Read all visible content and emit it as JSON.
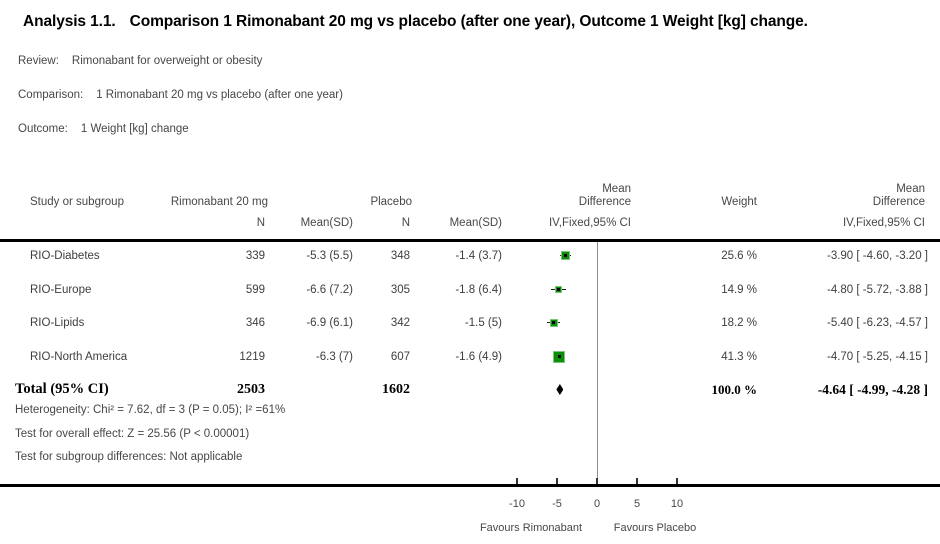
{
  "title": {
    "prefix": "Analysis 1.1.",
    "rest": "Comparison 1 Rimonabant 20 mg vs placebo (after one year), Outcome 1 Weight [kg] change."
  },
  "meta": {
    "review_label": "Review:",
    "review": "Rimonabant for overweight or obesity",
    "comparison_label": "Comparison:",
    "comparison": "1 Rimonabant 20 mg vs placebo (after one year)",
    "outcome_label": "Outcome:",
    "outcome": "1 Weight [kg] change"
  },
  "table": {
    "headers": {
      "study": "Study or subgroup",
      "group1": "Rimonabant 20 mg",
      "group2": "Placebo",
      "n": "N",
      "mean_sd": "Mean(SD)",
      "md_line1": "Mean",
      "md_line2": "Difference",
      "ci_method": "IV,Fixed,95% CI",
      "weight": "Weight"
    },
    "rows": [
      {
        "study": "RIO-Diabetes",
        "n1": "339",
        "mean_sd1": "-5.3 (5.5)",
        "n2": "348",
        "mean_sd2": "-1.4 (3.7)",
        "weight": "25.6 %",
        "md_ci": "-3.90 [ -4.60, -3.20 ]"
      },
      {
        "study": "RIO-Europe",
        "n1": "599",
        "mean_sd1": "-6.6 (7.2)",
        "n2": "305",
        "mean_sd2": "-1.8 (6.4)",
        "weight": "14.9 %",
        "md_ci": "-4.80 [ -5.72, -3.88 ]"
      },
      {
        "study": "RIO-Lipids",
        "n1": "346",
        "mean_sd1": "-6.9 (6.1)",
        "n2": "342",
        "mean_sd2": "-1.5 (5)",
        "weight": "18.2 %",
        "md_ci": "-5.40 [ -6.23, -4.57 ]"
      },
      {
        "study": "RIO-North America",
        "n1": "1219",
        "mean_sd1": "-6.3 (7)",
        "n2": "607",
        "mean_sd2": "-1.6 (4.9)",
        "weight": "41.3 %",
        "md_ci": "-4.70 [ -5.25, -4.15 ]"
      }
    ],
    "total": {
      "label": "Total (95% CI)",
      "n1": "2503",
      "n2": "1602",
      "weight": "100.0 %",
      "md_ci": "-4.64 [ -4.99, -4.28 ]"
    },
    "footnotes": [
      "Heterogeneity: Chi² = 7.62, df = 3 (P = 0.05); I² =61%",
      "Test for overall effect: Z = 25.56 (P < 0.00001)",
      "Test for subgroup differences: Not applicable"
    ]
  },
  "axis": {
    "ticks": [
      -10,
      -5,
      0,
      5,
      10
    ],
    "favours_left": "Favours Rimonabant",
    "favours_right": "Favours Placebo"
  },
  "chart_data": {
    "type": "scatter",
    "subtype": "forest-plot",
    "title": "Comparison 1 Rimonabant 20 mg vs placebo (after one year), Outcome 1 Weight [kg] change",
    "effect_measure": "Mean Difference IV,Fixed,95% CI",
    "xlabel_ticks": [
      -10,
      -5,
      0,
      5,
      10
    ],
    "zero_line": 0,
    "studies": [
      {
        "name": "RIO-Diabetes",
        "md": -3.9,
        "ci_low": -4.6,
        "ci_high": -3.2,
        "weight_pct": 25.6
      },
      {
        "name": "RIO-Europe",
        "md": -4.8,
        "ci_low": -5.72,
        "ci_high": -3.88,
        "weight_pct": 14.9
      },
      {
        "name": "RIO-Lipids",
        "md": -5.4,
        "ci_low": -6.23,
        "ci_high": -4.57,
        "weight_pct": 18.2
      },
      {
        "name": "RIO-North America",
        "md": -4.7,
        "ci_low": -5.25,
        "ci_high": -4.15,
        "weight_pct": 41.3
      }
    ],
    "total": {
      "name": "Total (95% CI)",
      "md": -4.64,
      "ci_low": -4.99,
      "ci_high": -4.28,
      "weight_pct": 100.0
    }
  },
  "colors": {
    "marker_green": "#0b8f0b",
    "marker_border": "#7cc57c",
    "diamond": "#000000",
    "rule": "#000000",
    "zero_line": "#8f8f8f"
  }
}
